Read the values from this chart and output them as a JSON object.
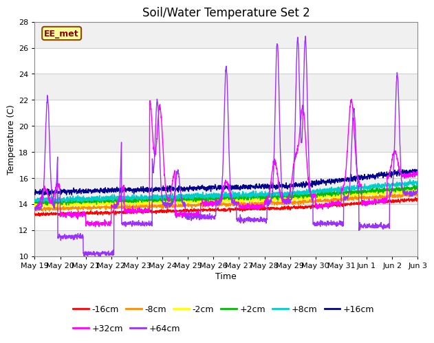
{
  "title": "Soil/Water Temperature Set 2",
  "xlabel": "Time",
  "ylabel": "Temperature (C)",
  "ylim": [
    10,
    28
  ],
  "yticks": [
    10,
    12,
    14,
    16,
    18,
    20,
    22,
    24,
    26,
    28
  ],
  "annotation_text": "EE_met",
  "series": [
    {
      "label": "-16cm",
      "color": "#FF0000"
    },
    {
      "label": "-8cm",
      "color": "#FF8C00"
    },
    {
      "label": "-2cm",
      "color": "#FFFF00"
    },
    {
      "label": "+2cm",
      "color": "#00BB00"
    },
    {
      "label": "+8cm",
      "color": "#00CCCC"
    },
    {
      "label": "+16cm",
      "color": "#00008B"
    },
    {
      "label": "+32cm",
      "color": "#FF00FF"
    },
    {
      "label": "+64cm",
      "color": "#9B30FF"
    }
  ],
  "x_tick_labels": [
    "May 19",
    "May 20",
    "May 21",
    "May 22",
    "May 23",
    "May 24",
    "May 25",
    "May 26",
    "May 27",
    "May 28",
    "May 29",
    "May 30",
    "May 31",
    "Jun 1",
    "Jun 2",
    "Jun 3"
  ],
  "title_fontsize": 12,
  "axis_label_fontsize": 9,
  "tick_fontsize": 8,
  "legend_fontsize": 9
}
